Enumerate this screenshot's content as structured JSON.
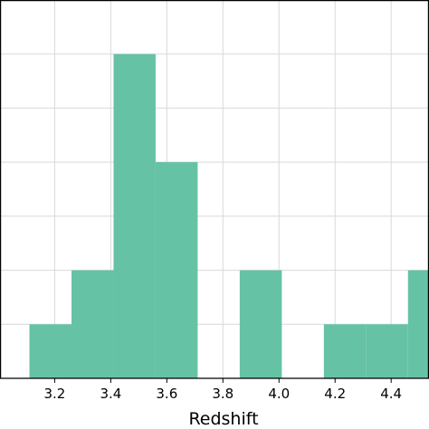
{
  "chart_data": {
    "type": "bar",
    "xlabel": "Redshift",
    "xlim": [
      3.005,
      4.535
    ],
    "ylim": [
      0,
      7.0
    ],
    "x_ticks": [
      "3.2",
      "3.4",
      "3.6",
      "3.8",
      "4.0",
      "4.2",
      "4.4"
    ],
    "y_grid": [
      1,
      2,
      3,
      4,
      5,
      6
    ],
    "grid": true,
    "bin_width": 0.15,
    "bins": [
      {
        "x0": 3.11,
        "x1": 3.26,
        "count": 1
      },
      {
        "x0": 3.26,
        "x1": 3.41,
        "count": 2
      },
      {
        "x0": 3.41,
        "x1": 3.56,
        "count": 6
      },
      {
        "x0": 3.56,
        "x1": 3.71,
        "count": 4
      },
      {
        "x0": 3.71,
        "x1": 3.86,
        "count": 0
      },
      {
        "x0": 3.86,
        "x1": 4.01,
        "count": 2
      },
      {
        "x0": 4.01,
        "x1": 4.16,
        "count": 0
      },
      {
        "x0": 4.16,
        "x1": 4.31,
        "count": 1
      },
      {
        "x0": 4.31,
        "x1": 4.46,
        "count": 1
      },
      {
        "x0": 4.46,
        "x1": 4.61,
        "count": 2
      }
    ],
    "bar_color": "#66c2a5"
  }
}
